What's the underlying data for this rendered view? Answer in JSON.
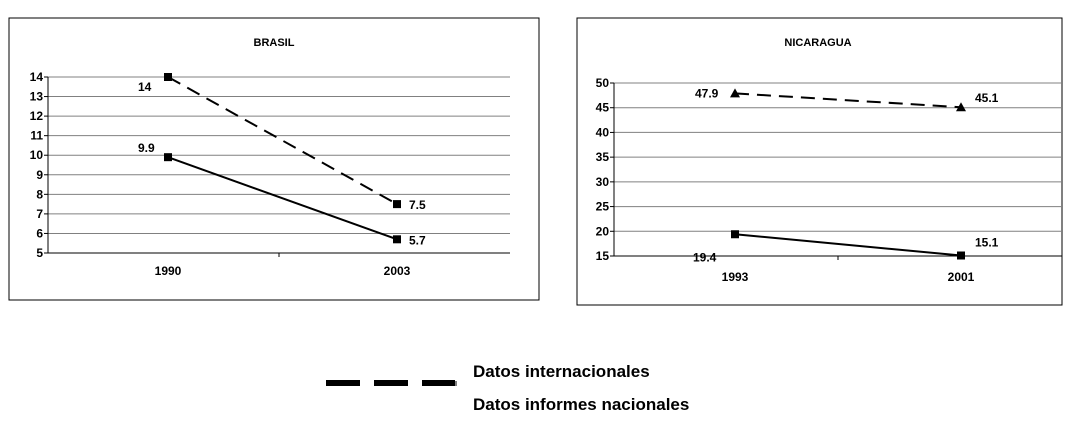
{
  "chart_data": [
    {
      "type": "line",
      "title": "BRASIL",
      "categories": [
        "1990",
        "2003"
      ],
      "ylim": [
        5,
        14
      ],
      "yticks": [
        5,
        6,
        7,
        8,
        9,
        10,
        11,
        12,
        13,
        14
      ],
      "grid": true,
      "series": [
        {
          "name": "Datos internacionales",
          "style": "dashed",
          "marker": "square",
          "values": [
            14,
            7.5
          ],
          "labels": [
            "14",
            "7.5"
          ]
        },
        {
          "name": "Datos informes nacionales",
          "style": "solid",
          "marker": "square",
          "values": [
            9.9,
            5.7
          ],
          "labels": [
            "9.9",
            "5.7"
          ]
        }
      ]
    },
    {
      "type": "line",
      "title": "NICARAGUA",
      "categories": [
        "1993",
        "2001"
      ],
      "ylim": [
        15,
        50
      ],
      "yticks": [
        15,
        20,
        25,
        30,
        35,
        40,
        45,
        50
      ],
      "grid": true,
      "series": [
        {
          "name": "Datos internacionales",
          "style": "dashed",
          "marker": "triangle",
          "values": [
            47.9,
            45.1
          ],
          "labels": [
            "47.9",
            "45.1"
          ]
        },
        {
          "name": "Datos informes nacionales",
          "style": "solid",
          "marker": "square",
          "values": [
            19.4,
            15.1
          ],
          "labels": [
            "19.4",
            "15.1"
          ]
        }
      ]
    }
  ],
  "legend": {
    "placement": "bottom-center",
    "items": [
      {
        "label": "Datos internacionales",
        "style": "dashed"
      },
      {
        "label": "Datos informes nacionales",
        "style": "solid"
      }
    ]
  },
  "colors": {
    "line": "#000000",
    "grid": "#808080",
    "frame": "#000000"
  }
}
